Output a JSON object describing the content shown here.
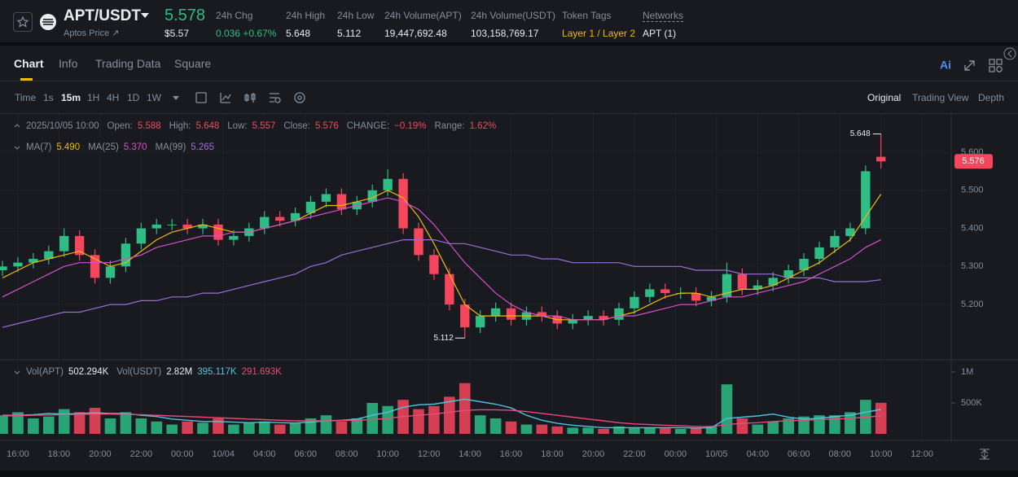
{
  "header": {
    "symbol": "APT/USDT",
    "price": "5.578",
    "subtitle": "Aptos Price ↗",
    "usd_price": "$5.57",
    "stats": [
      {
        "label": "24h Chg",
        "value": "0.036 +0.67%"
      },
      {
        "label": "24h High",
        "value": "5.648"
      },
      {
        "label": "24h Low",
        "value": "5.112"
      },
      {
        "label": "24h Volume(APT)",
        "value": "19,447,692.48"
      },
      {
        "label": "24h Volume(USDT)",
        "value": "103,158,769.17"
      },
      {
        "label": "Token Tags",
        "value": "Layer 1 / Layer 2"
      },
      {
        "label": "Networks",
        "value": "APT (1)"
      }
    ]
  },
  "tabs": [
    "Chart",
    "Info",
    "Trading Data",
    "Square"
  ],
  "intervals": [
    "Time",
    "1s",
    "15m",
    "1H",
    "4H",
    "1D",
    "1W"
  ],
  "views": [
    "Original",
    "Trading View",
    "Depth"
  ],
  "chart_data": {
    "type": "candlestick",
    "info": {
      "date": "2025/10/05 10:00",
      "fields": [
        {
          "label": "Open:",
          "value": "5.588"
        },
        {
          "label": "High:",
          "value": "5.648"
        },
        {
          "label": "Low:",
          "value": "5.557"
        },
        {
          "label": "Close:",
          "value": "5.576"
        },
        {
          "label": "CHANGE:",
          "value": "−0.19%"
        },
        {
          "label": "Range:",
          "value": "1.62%"
        }
      ]
    },
    "up_color": "#2ebd85",
    "down_color": "#f6465d",
    "xlim": [
      -0.87,
      45.3
    ],
    "xticks": [
      {
        "value": 0,
        "label": "16:00"
      },
      {
        "value": 2,
        "label": "18:00"
      },
      {
        "value": 4,
        "label": "20:00"
      },
      {
        "value": 6,
        "label": "22:00"
      },
      {
        "value": 8,
        "label": "00:00"
      },
      {
        "value": 10,
        "label": "10/04"
      },
      {
        "value": 12,
        "label": "04:00"
      },
      {
        "value": 14,
        "label": "06:00"
      },
      {
        "value": 16,
        "label": "08:00"
      },
      {
        "value": 18,
        "label": "10:00"
      },
      {
        "value": 20,
        "label": "12:00"
      },
      {
        "value": 22,
        "label": "14:00"
      },
      {
        "value": 24,
        "label": "16:00"
      },
      {
        "value": 26,
        "label": "18:00"
      },
      {
        "value": 28,
        "label": "20:00"
      },
      {
        "value": 30,
        "label": "22:00"
      },
      {
        "value": 32,
        "label": "00:00"
      },
      {
        "value": 34,
        "label": "10/05"
      },
      {
        "value": 36,
        "label": "04:00"
      },
      {
        "value": 38,
        "label": "06:00"
      },
      {
        "value": 40,
        "label": "08:00"
      },
      {
        "value": 42,
        "label": "10:00"
      },
      {
        "value": 44,
        "label": "12:00"
      }
    ],
    "ylim": [
      5.057,
      5.7005
    ],
    "yticks": [
      {
        "value": 5.2,
        "label": "5.200"
      },
      {
        "value": 5.3,
        "label": "5.300"
      },
      {
        "value": 5.4,
        "label": "5.400"
      },
      {
        "value": 5.5,
        "label": "5.500"
      },
      {
        "value": 5.6,
        "label": "5.600"
      }
    ],
    "x": [
      -0.75,
      0,
      0.75,
      1.5,
      2.25,
      3,
      3.75,
      4.5,
      5.25,
      6,
      6.75,
      7.5,
      8.25,
      9,
      9.75,
      10.5,
      11.25,
      12,
      12.75,
      13.5,
      14.25,
      15,
      15.75,
      16.5,
      17.25,
      18,
      18.75,
      19.5,
      20.25,
      21,
      21.75,
      22.5,
      23.25,
      24,
      24.75,
      25.5,
      26.25,
      27,
      27.75,
      28.5,
      29.25,
      30,
      30.75,
      31.5,
      32.25,
      33,
      33.75,
      34.5,
      35.25,
      36,
      36.75,
      37.5,
      38.25,
      39,
      39.75,
      40.5,
      41.25,
      42
    ],
    "open": [
      5.29,
      5.3,
      5.31,
      5.32,
      5.34,
      5.38,
      5.33,
      5.27,
      5.3,
      5.36,
      5.4,
      5.41,
      5.41,
      5.4,
      5.41,
      5.37,
      5.38,
      5.4,
      5.43,
      5.42,
      5.44,
      5.47,
      5.49,
      5.45,
      5.47,
      5.5,
      5.53,
      5.4,
      5.33,
      5.28,
      5.2,
      5.14,
      5.17,
      5.19,
      5.16,
      5.18,
      5.17,
      5.15,
      5.16,
      5.17,
      5.16,
      5.19,
      5.22,
      5.24,
      5.23,
      5.23,
      5.21,
      5.22,
      5.28,
      5.24,
      5.25,
      5.27,
      5.29,
      5.32,
      5.35,
      5.38,
      5.4,
      5.588
    ],
    "high": [
      5.315,
      5.325,
      5.335,
      5.355,
      5.4,
      5.395,
      5.345,
      5.315,
      5.375,
      5.415,
      5.425,
      5.425,
      5.425,
      5.425,
      5.425,
      5.395,
      5.415,
      5.445,
      5.445,
      5.455,
      5.485,
      5.505,
      5.505,
      5.485,
      5.515,
      5.555,
      5.545,
      5.415,
      5.345,
      5.295,
      5.215,
      5.185,
      5.205,
      5.205,
      5.195,
      5.195,
      5.185,
      5.175,
      5.185,
      5.185,
      5.205,
      5.235,
      5.255,
      5.255,
      5.245,
      5.245,
      5.235,
      5.31,
      5.295,
      5.265,
      5.285,
      5.305,
      5.335,
      5.365,
      5.395,
      5.415,
      5.565,
      5.648
    ],
    "low": [
      5.275,
      5.285,
      5.295,
      5.305,
      5.325,
      5.315,
      5.255,
      5.255,
      5.285,
      5.345,
      5.385,
      5.395,
      5.385,
      5.385,
      5.355,
      5.355,
      5.365,
      5.385,
      5.405,
      5.405,
      5.425,
      5.455,
      5.435,
      5.435,
      5.455,
      5.485,
      5.385,
      5.315,
      5.265,
      5.185,
      5.112,
      5.125,
      5.155,
      5.145,
      5.145,
      5.155,
      5.135,
      5.135,
      5.145,
      5.145,
      5.145,
      5.175,
      5.205,
      5.215,
      5.215,
      5.195,
      5.195,
      5.205,
      5.225,
      5.225,
      5.235,
      5.255,
      5.275,
      5.305,
      5.335,
      5.365,
      5.385,
      5.557
    ],
    "close": [
      5.3,
      5.31,
      5.32,
      5.34,
      5.38,
      5.33,
      5.27,
      5.3,
      5.36,
      5.4,
      5.41,
      5.41,
      5.4,
      5.41,
      5.37,
      5.38,
      5.4,
      5.43,
      5.42,
      5.44,
      5.47,
      5.49,
      5.45,
      5.47,
      5.5,
      5.53,
      5.4,
      5.33,
      5.28,
      5.2,
      5.14,
      5.17,
      5.19,
      5.16,
      5.18,
      5.17,
      5.15,
      5.16,
      5.17,
      5.16,
      5.19,
      5.22,
      5.24,
      5.23,
      5.23,
      5.21,
      5.22,
      5.28,
      5.24,
      5.25,
      5.27,
      5.29,
      5.32,
      5.35,
      5.38,
      5.4,
      5.55,
      5.576
    ],
    "max_label": "5.648",
    "min_label": "5.112",
    "price_tag": "5.576",
    "ma": [
      {
        "name": "MA(7)",
        "current": "5.490",
        "color": "#f0b90b",
        "values": [
          5.27,
          5.29,
          5.31,
          5.32,
          5.33,
          5.34,
          5.32,
          5.3,
          5.31,
          5.34,
          5.37,
          5.39,
          5.4,
          5.41,
          5.4,
          5.39,
          5.39,
          5.4,
          5.41,
          5.42,
          5.44,
          5.46,
          5.46,
          5.47,
          5.48,
          5.5,
          5.48,
          5.43,
          5.36,
          5.28,
          5.2,
          5.17,
          5.17,
          5.17,
          5.17,
          5.17,
          5.16,
          5.16,
          5.16,
          5.16,
          5.17,
          5.18,
          5.2,
          5.22,
          5.23,
          5.23,
          5.22,
          5.23,
          5.24,
          5.24,
          5.25,
          5.27,
          5.29,
          5.31,
          5.34,
          5.37,
          5.43,
          5.49
        ]
      },
      {
        "name": "MA(25)",
        "current": "5.370",
        "color": "#d84fcb",
        "values": [
          5.22,
          5.24,
          5.26,
          5.28,
          5.3,
          5.31,
          5.31,
          5.31,
          5.32,
          5.33,
          5.35,
          5.36,
          5.37,
          5.38,
          5.38,
          5.39,
          5.39,
          5.4,
          5.41,
          5.42,
          5.43,
          5.44,
          5.45,
          5.46,
          5.47,
          5.48,
          5.47,
          5.45,
          5.41,
          5.36,
          5.31,
          5.27,
          5.23,
          5.2,
          5.18,
          5.17,
          5.17,
          5.16,
          5.16,
          5.16,
          5.17,
          5.17,
          5.18,
          5.19,
          5.2,
          5.2,
          5.21,
          5.22,
          5.22,
          5.23,
          5.24,
          5.25,
          5.26,
          5.28,
          5.3,
          5.32,
          5.35,
          5.37
        ]
      },
      {
        "name": "MA(99)",
        "current": "5.265",
        "color": "#9b6fd9",
        "values": [
          5.14,
          5.15,
          5.16,
          5.17,
          5.18,
          5.18,
          5.19,
          5.2,
          5.2,
          5.21,
          5.21,
          5.22,
          5.22,
          5.23,
          5.23,
          5.24,
          5.25,
          5.26,
          5.27,
          5.28,
          5.3,
          5.31,
          5.33,
          5.34,
          5.35,
          5.36,
          5.37,
          5.37,
          5.37,
          5.36,
          5.36,
          5.35,
          5.34,
          5.33,
          5.33,
          5.32,
          5.32,
          5.31,
          5.31,
          5.31,
          5.31,
          5.3,
          5.3,
          5.3,
          5.3,
          5.29,
          5.29,
          5.29,
          5.28,
          5.28,
          5.28,
          5.27,
          5.27,
          5.27,
          5.26,
          5.26,
          5.26,
          5.265
        ]
      }
    ],
    "volume": {
      "name": "Vol(APT)",
      "current": "502.294K",
      "ylim": [
        -92000,
        1184000
      ],
      "yticks": [
        {
          "value": 500000,
          "label": "500K"
        },
        {
          "value": 1000000,
          "label": "1M"
        }
      ],
      "values": [
        300000,
        350000,
        250000,
        280000,
        400000,
        350000,
        420000,
        250000,
        350000,
        250000,
        200000,
        150000,
        200000,
        180000,
        250000,
        150000,
        180000,
        200000,
        150000,
        170000,
        250000,
        300000,
        200000,
        250000,
        500000,
        450000,
        550000,
        400000,
        450000,
        600000,
        820000,
        300000,
        250000,
        200000,
        150000,
        150000,
        120000,
        100000,
        100000,
        80000,
        120000,
        100000,
        100000,
        90000,
        80000,
        100000,
        120000,
        800000,
        250000,
        150000,
        200000,
        250000,
        280000,
        300000,
        300000,
        350000,
        550000,
        502294
      ],
      "ma": [
        {
          "current": "395.117K",
          "color": "#4fc3e0",
          "values": [
            300000,
            300000,
            310000,
            330000,
            320000,
            330000,
            340000,
            330000,
            330000,
            300000,
            280000,
            240000,
            220000,
            200000,
            200000,
            190000,
            180000,
            190000,
            180000,
            175000,
            190000,
            210000,
            220000,
            240000,
            300000,
            350000,
            430000,
            470000,
            480000,
            520000,
            560000,
            520000,
            480000,
            420000,
            300000,
            220000,
            170000,
            140000,
            120000,
            100000,
            100000,
            100000,
            100000,
            100000,
            100000,
            95000,
            100000,
            250000,
            270000,
            290000,
            320000,
            270000,
            240000,
            250000,
            280000,
            300000,
            350000,
            395117
          ]
        },
        {
          "current": "291.693K",
          "color": "#e84a7a",
          "values": [
            290000,
            295000,
            300000,
            305000,
            310000,
            315000,
            320000,
            320000,
            315000,
            310000,
            300000,
            290000,
            280000,
            270000,
            260000,
            250000,
            240000,
            230000,
            220000,
            210000,
            210000,
            210000,
            215000,
            220000,
            230000,
            250000,
            280000,
            300000,
            320000,
            350000,
            380000,
            390000,
            390000,
            380000,
            360000,
            330000,
            300000,
            270000,
            240000,
            210000,
            180000,
            160000,
            150000,
            140000,
            130000,
            120000,
            120000,
            150000,
            170000,
            180000,
            200000,
            210000,
            220000,
            230000,
            240000,
            250000,
            270000,
            291693
          ]
        }
      ]
    },
    "volume_usdt": {
      "name": "Vol(USDT)",
      "current": "2.82M"
    }
  }
}
